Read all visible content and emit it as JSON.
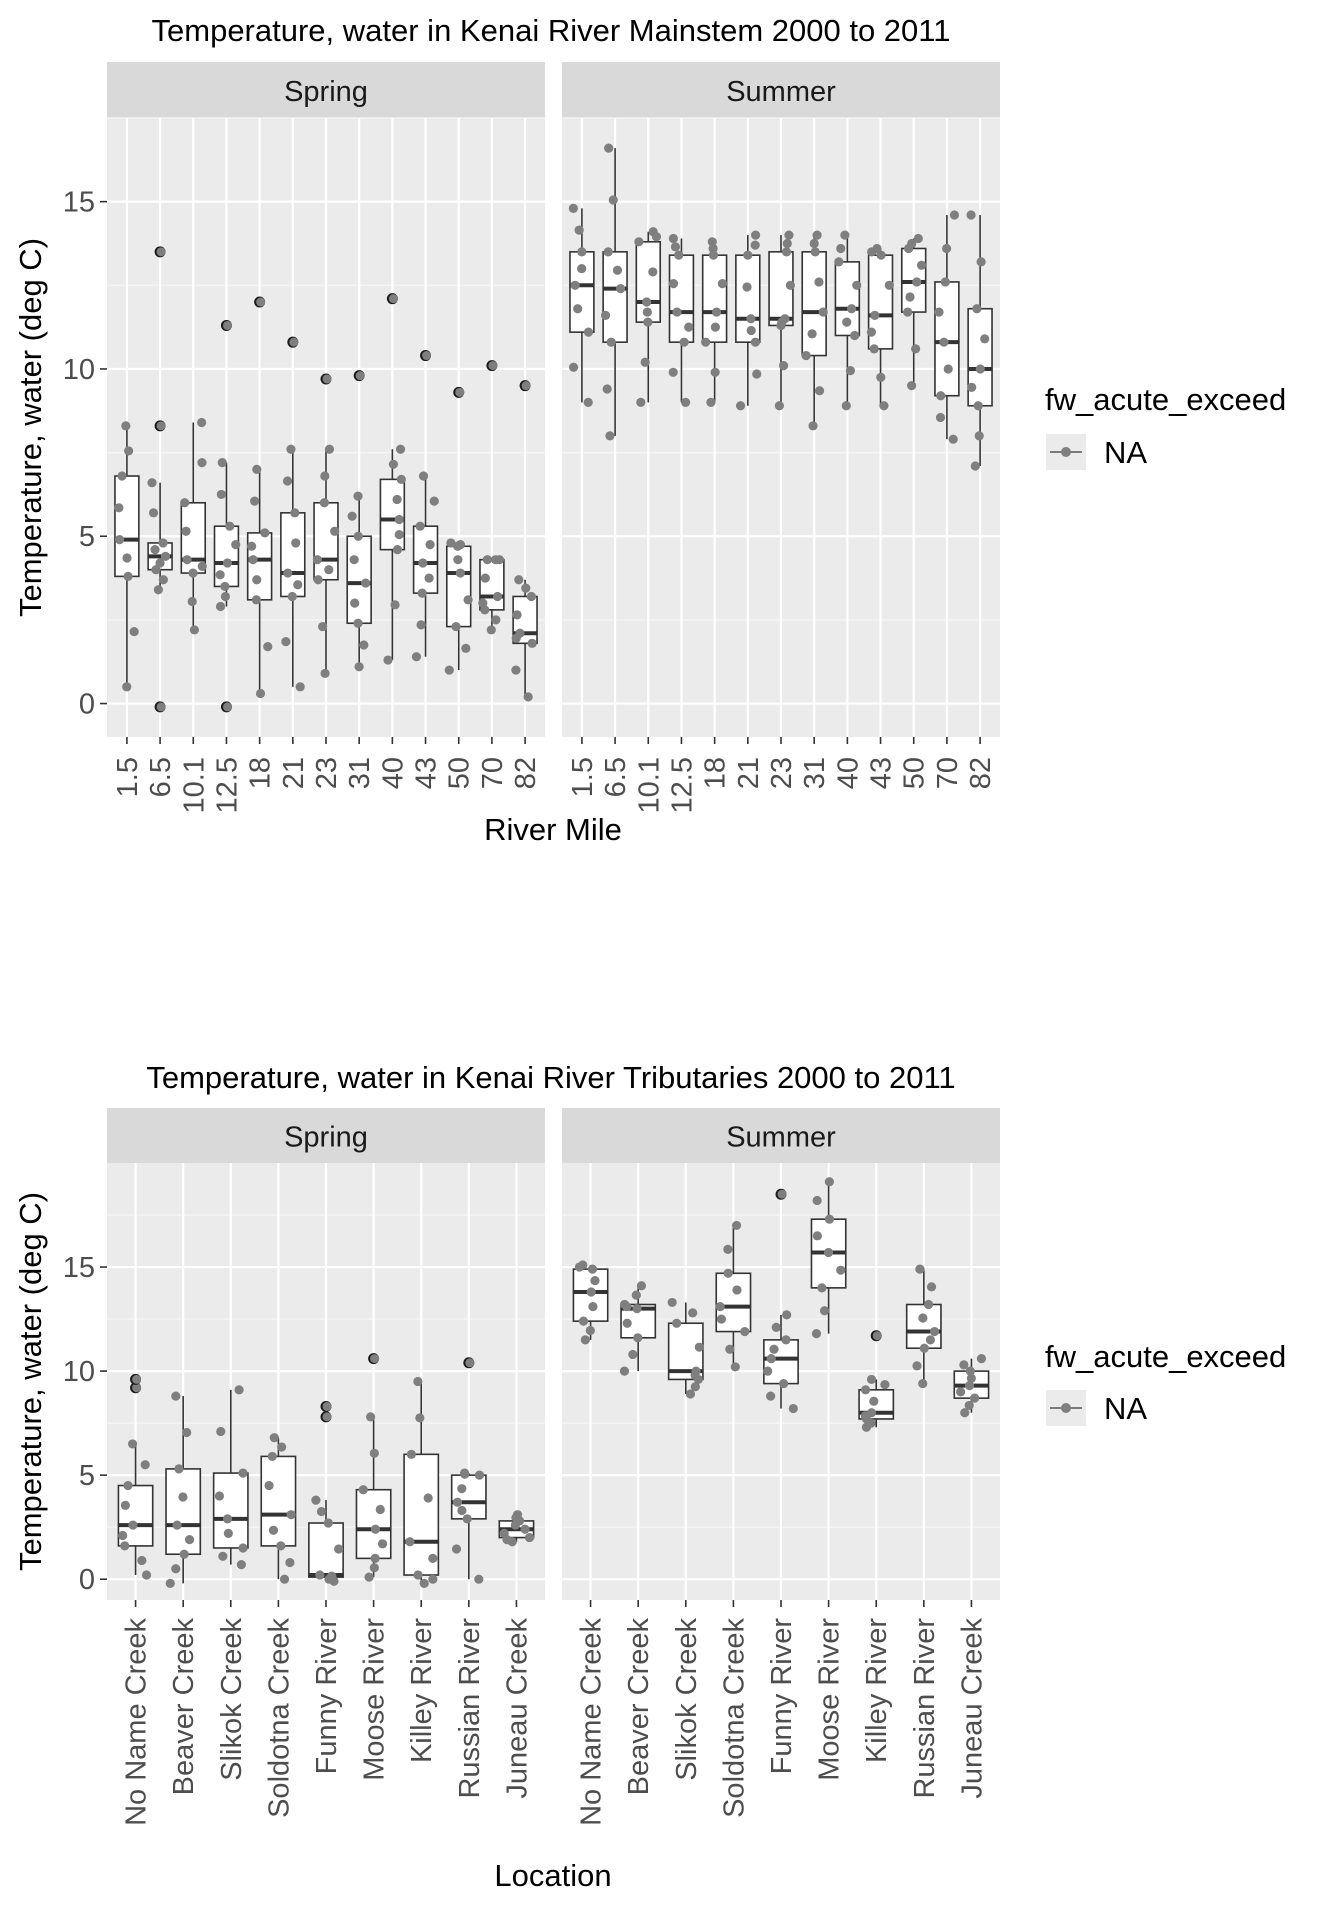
{
  "chart_data": [
    {
      "type": "box",
      "title": "Temperature, water in Kenai River Mainstem 2000 to 2011",
      "xlabel": "River Mile",
      "ylabel": "Temperature, water (deg C)",
      "ylim": [
        -1,
        17.5
      ],
      "yticks": [
        0,
        5,
        10,
        15
      ],
      "grid": true,
      "legend": {
        "title": "fw_acute_exceed",
        "label": "NA",
        "placement": "right"
      },
      "categories": [
        "1.5",
        "6.5",
        "10.1",
        "12.5",
        "18",
        "21",
        "23",
        "31",
        "40",
        "43",
        "50",
        "70",
        "82"
      ],
      "panels": [
        {
          "name": "Spring",
          "boxes": [
            {
              "min": 0.5,
              "q1": 3.8,
              "median": 4.9,
              "q3": 6.8,
              "max": 8.3,
              "outliers": []
            },
            {
              "min": 3.4,
              "q1": 4.0,
              "median": 4.4,
              "q3": 4.8,
              "max": 6.6,
              "outliers": [
                -0.1,
                8.3,
                13.5
              ]
            },
            {
              "min": 2.2,
              "q1": 3.9,
              "median": 4.3,
              "q3": 6.0,
              "max": 8.4,
              "outliers": []
            },
            {
              "min": 2.9,
              "q1": 3.5,
              "median": 4.2,
              "q3": 5.3,
              "max": 7.2,
              "outliers": [
                -0.1,
                11.3
              ]
            },
            {
              "min": 0.3,
              "q1": 3.1,
              "median": 4.3,
              "q3": 5.1,
              "max": 7.0,
              "outliers": [
                12.0
              ]
            },
            {
              "min": 0.5,
              "q1": 3.2,
              "median": 3.9,
              "q3": 5.7,
              "max": 7.6,
              "outliers": [
                10.8
              ]
            },
            {
              "min": 0.9,
              "q1": 3.7,
              "median": 4.3,
              "q3": 6.0,
              "max": 7.6,
              "outliers": [
                9.7
              ]
            },
            {
              "min": 1.1,
              "q1": 2.4,
              "median": 3.6,
              "q3": 5.0,
              "max": 6.2,
              "outliers": [
                9.8
              ]
            },
            {
              "min": 1.3,
              "q1": 4.6,
              "median": 5.5,
              "q3": 6.7,
              "max": 7.6,
              "outliers": [
                12.1
              ]
            },
            {
              "min": 1.4,
              "q1": 3.3,
              "median": 4.2,
              "q3": 5.3,
              "max": 6.8,
              "outliers": [
                10.4
              ]
            },
            {
              "min": 1.0,
              "q1": 2.3,
              "median": 3.9,
              "q3": 4.7,
              "max": 4.8,
              "outliers": [
                9.3
              ]
            },
            {
              "min": 2.2,
              "q1": 2.8,
              "median": 3.2,
              "q3": 4.3,
              "max": 4.3,
              "outliers": [
                10.1
              ]
            },
            {
              "min": 0.2,
              "q1": 1.8,
              "median": 2.1,
              "q3": 3.2,
              "max": 3.7,
              "outliers": [
                9.5
              ]
            }
          ]
        },
        {
          "name": "Summer",
          "boxes": [
            {
              "min": 9.0,
              "q1": 11.1,
              "median": 12.5,
              "q3": 13.5,
              "max": 14.8,
              "outliers": []
            },
            {
              "min": 8.0,
              "q1": 10.8,
              "median": 12.4,
              "q3": 13.5,
              "max": 16.6,
              "outliers": []
            },
            {
              "min": 9.0,
              "q1": 11.4,
              "median": 12.0,
              "q3": 13.8,
              "max": 14.1,
              "outliers": []
            },
            {
              "min": 9.0,
              "q1": 10.8,
              "median": 11.7,
              "q3": 13.4,
              "max": 13.9,
              "outliers": []
            },
            {
              "min": 9.0,
              "q1": 10.8,
              "median": 11.7,
              "q3": 13.4,
              "max": 13.8,
              "outliers": []
            },
            {
              "min": 8.9,
              "q1": 10.8,
              "median": 11.5,
              "q3": 13.4,
              "max": 14.0,
              "outliers": []
            },
            {
              "min": 8.9,
              "q1": 11.3,
              "median": 11.5,
              "q3": 13.5,
              "max": 14.0,
              "outliers": []
            },
            {
              "min": 8.3,
              "q1": 10.4,
              "median": 11.7,
              "q3": 13.5,
              "max": 14.0,
              "outliers": []
            },
            {
              "min": 8.9,
              "q1": 11.0,
              "median": 11.8,
              "q3": 13.2,
              "max": 14.0,
              "outliers": []
            },
            {
              "min": 8.9,
              "q1": 10.6,
              "median": 11.6,
              "q3": 13.4,
              "max": 13.6,
              "outliers": []
            },
            {
              "min": 9.5,
              "q1": 11.7,
              "median": 12.6,
              "q3": 13.6,
              "max": 13.9,
              "outliers": []
            },
            {
              "min": 7.9,
              "q1": 9.2,
              "median": 10.8,
              "q3": 12.6,
              "max": 14.6,
              "outliers": []
            },
            {
              "min": 7.1,
              "q1": 8.9,
              "median": 10.0,
              "q3": 11.8,
              "max": 14.6,
              "outliers": []
            }
          ]
        }
      ]
    },
    {
      "type": "box",
      "title": "Temperature, water in Kenai River Tributaries 2000 to 2011",
      "xlabel": "Location",
      "ylabel": "Temperature, water (deg C)",
      "ylim": [
        -1,
        20
      ],
      "yticks": [
        0,
        5,
        10,
        15
      ],
      "grid": true,
      "legend": {
        "title": "fw_acute_exceed",
        "label": "NA",
        "placement": "right"
      },
      "categories": [
        "No Name Creek",
        "Beaver Creek",
        "Slikok Creek",
        "Soldotna Creek",
        "Funny River",
        "Moose River",
        "Killey River",
        "Russian River",
        "Juneau Creek"
      ],
      "panels": [
        {
          "name": "Spring",
          "boxes": [
            {
              "min": 0.2,
              "q1": 1.6,
              "median": 2.6,
              "q3": 4.5,
              "max": 6.5,
              "outliers": [
                9.2,
                9.6
              ]
            },
            {
              "min": -0.2,
              "q1": 1.2,
              "median": 2.6,
              "q3": 5.3,
              "max": 8.8,
              "outliers": []
            },
            {
              "min": 0.7,
              "q1": 1.5,
              "median": 2.9,
              "q3": 5.1,
              "max": 9.1,
              "outliers": []
            },
            {
              "min": 0.0,
              "q1": 1.6,
              "median": 3.1,
              "q3": 5.9,
              "max": 6.8,
              "outliers": []
            },
            {
              "min": -0.1,
              "q1": 0.1,
              "median": 0.2,
              "q3": 2.7,
              "max": 3.8,
              "outliers": [
                7.8,
                8.3
              ]
            },
            {
              "min": 0.1,
              "q1": 1.0,
              "median": 2.4,
              "q3": 4.3,
              "max": 7.8,
              "outliers": [
                10.6
              ]
            },
            {
              "min": -0.2,
              "q1": 0.2,
              "median": 1.8,
              "q3": 6.0,
              "max": 9.5,
              "outliers": []
            },
            {
              "min": 0.0,
              "q1": 2.9,
              "median": 3.7,
              "q3": 5.0,
              "max": 5.1,
              "outliers": [
                10.4
              ]
            },
            {
              "min": 1.8,
              "q1": 2.0,
              "median": 2.4,
              "q3": 2.8,
              "max": 3.1,
              "outliers": []
            }
          ]
        },
        {
          "name": "Summer",
          "boxes": [
            {
              "min": 11.5,
              "q1": 12.4,
              "median": 13.8,
              "q3": 14.9,
              "max": 15.1,
              "outliers": []
            },
            {
              "min": 10.0,
              "q1": 11.6,
              "median": 13.0,
              "q3": 13.2,
              "max": 14.1,
              "outliers": []
            },
            {
              "min": 8.9,
              "q1": 9.6,
              "median": 10.0,
              "q3": 12.3,
              "max": 13.3,
              "outliers": []
            },
            {
              "min": 10.2,
              "q1": 11.9,
              "median": 13.1,
              "q3": 14.7,
              "max": 17.0,
              "outliers": []
            },
            {
              "min": 8.2,
              "q1": 9.4,
              "median": 10.6,
              "q3": 11.5,
              "max": 12.7,
              "outliers": [
                18.5
              ]
            },
            {
              "min": 11.8,
              "q1": 14.0,
              "median": 15.7,
              "q3": 17.3,
              "max": 19.1,
              "outliers": []
            },
            {
              "min": 7.3,
              "q1": 7.7,
              "median": 8.0,
              "q3": 9.1,
              "max": 9.6,
              "outliers": [
                11.7
              ]
            },
            {
              "min": 9.4,
              "q1": 11.1,
              "median": 11.9,
              "q3": 13.2,
              "max": 14.9,
              "outliers": []
            },
            {
              "min": 8.0,
              "q1": 8.7,
              "median": 9.3,
              "q3": 10.0,
              "max": 10.6,
              "outliers": []
            }
          ]
        }
      ]
    }
  ]
}
